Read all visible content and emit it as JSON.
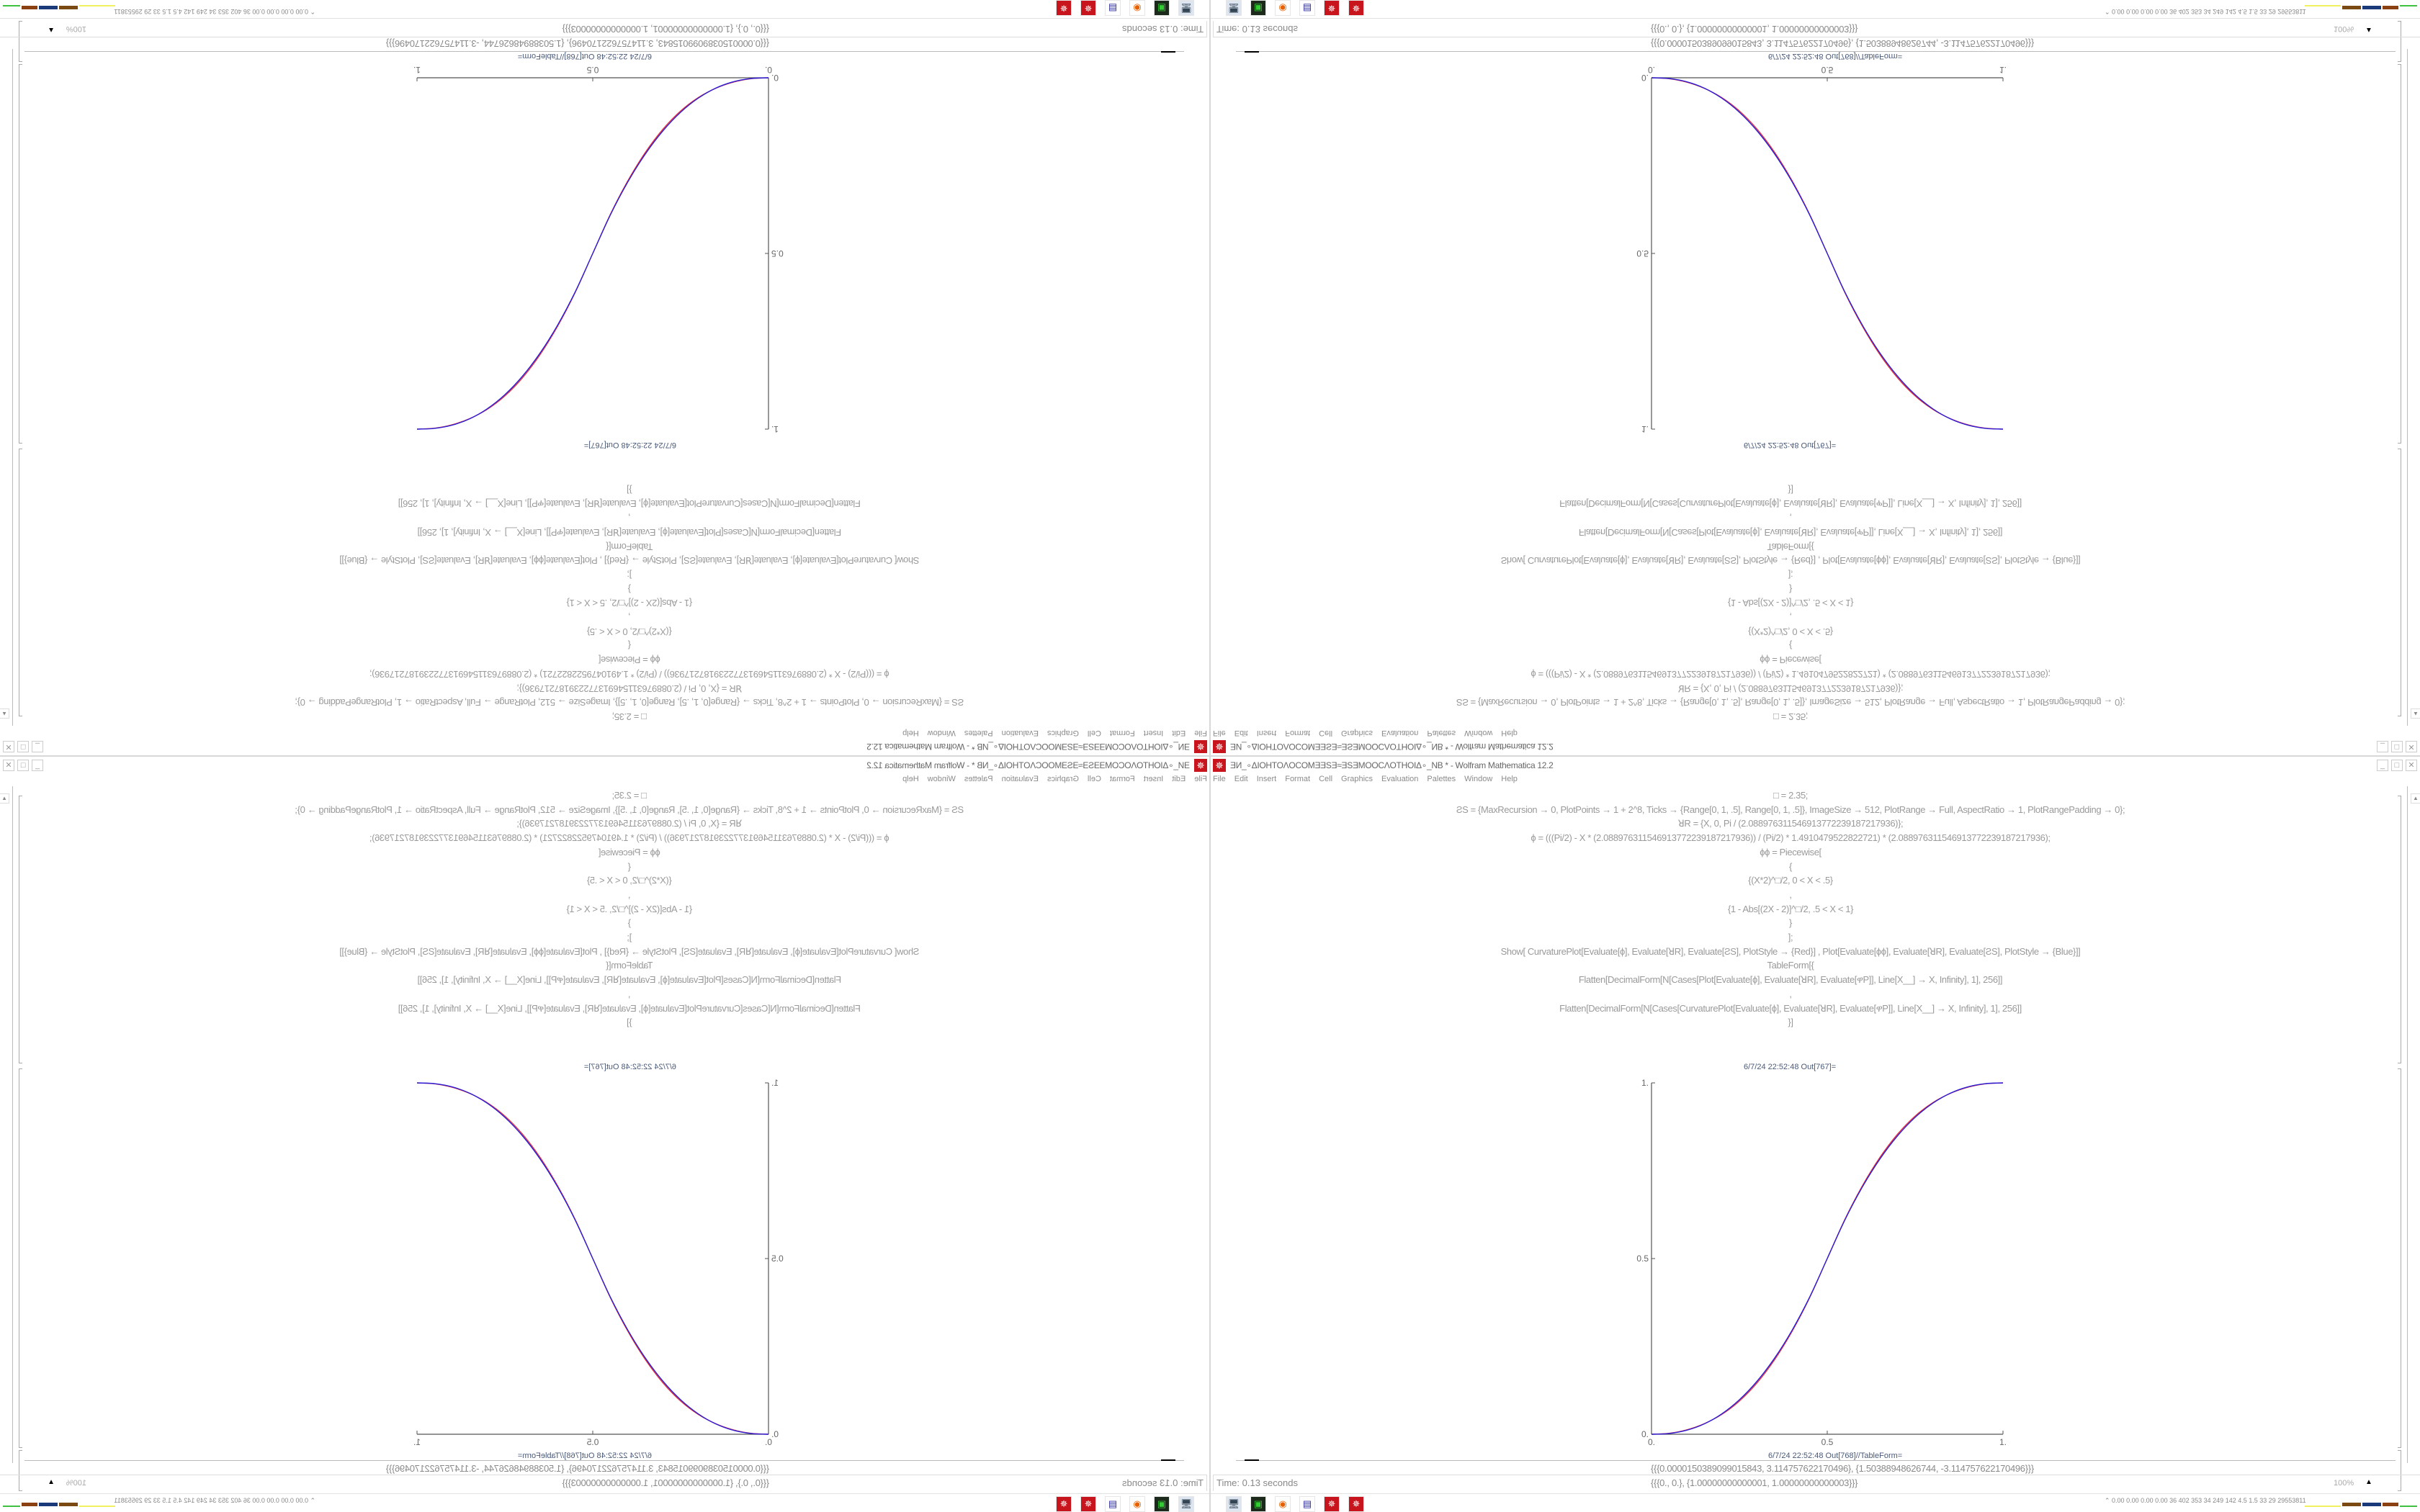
{
  "window": {
    "title": "ƎИ_∘ΔIOHTOΛOCOMƎƎSƎ≈ƎSƎMOOCΛOTHOIΔ∘_NB * - Wolfram Mathematica 12.2",
    "controls": [
      "minimize",
      "maximize",
      "close"
    ]
  },
  "menu": [
    "File",
    "Edit",
    "Insert",
    "Format",
    "Cell",
    "Graphics",
    "Evaluation",
    "Palettes",
    "Window",
    "Help"
  ],
  "input_cell": [
    "□ = 2.35;",
    "ƧS = {MaxRecursion → 0, PlotPoints → 1 + 2^8, Ticks → {Range[0, 1, .5], Range[0, 1, .5]}, ImageSize → 512, PlotRange → Full, AspectRatio → 1, PlotRangePadding → 0};",
    "ꓤR = {X, 0, Pi / (2.0889763115469137722391872179​36)};",
    "ϕ = (((Pi/2) - X * (2.08897631154691377223918721​7936)) / (Pi/2) * 1.4910479522822721) * (2.088976311546913772239187217936);",
    "ϕϕ = Piecewise[",
    "{",
    "{(X*2)^□/2, 0 < X < .5}",
    ",",
    "{1 - Abs[(2X - 2)]^□/2, .5 < X < 1}",
    "}",
    "];",
    "Show[   CurvaturePlot[Evaluate[ϕ], Evaluate[ꓤR], Evaluate[ƧS], PlotStyle → {Red}]   ,   Plot[Evaluate[ϕϕ], Evaluate[ꓤR], Evaluate[ƧS],  PlotStyle → {Blue}]]",
    "TableForm[{",
    "Flatten[DecimalForm[N[Cases[Plot[Evaluate[ϕ], Evaluate[ꓤR], Evaluate[ዋP]], Line[X__] → X, Infinity], 1], 256]]",
    ",",
    "Flatten[DecimalForm[N[Cases[CurvaturePlot[Evaluate[ϕ], Evaluate[ꓤR], Evaluate[ዋP]], Line[X__] → X, Infinity], 1], 256]]",
    "}]"
  ],
  "output_767_label": "6/7/24 22:52:48 Out[767]=",
  "output_768_label": "6/7/24 22:52:48 Out[768]//TableForm=",
  "table_rows": [
    "{{{0.0000150389099015843, 3.114757622170496}, {1.50388948626744, -3.114757622170496}}}",
    "{{{0., 0.}, {1.00000000000001, 1.00000000000003}}}"
  ],
  "status": {
    "time": "Time: 0.13 seconds",
    "zoom": "100%"
  },
  "taskbar": {
    "icons": [
      "network-monitor-icon",
      "terminal-icon",
      "firefox-icon",
      "floppy-64-icon",
      "mathematica-icon",
      "mathematica-icon"
    ],
    "stats": "0.00 0.00 0.00 0.00  36  402  353  34  249  142  4.5  1.5  33  29  29553811"
  },
  "colors": {
    "red_curve": "#e8323c",
    "blue_curve": "#2b1fd6",
    "app_icon": "#c8141c"
  },
  "chart_data": {
    "type": "line",
    "x": [
      0,
      0.05,
      0.1,
      0.15,
      0.2,
      0.25,
      0.3,
      0.35,
      0.4,
      0.45,
      0.5,
      0.55,
      0.6,
      0.65,
      0.7,
      0.75,
      0.8,
      0.85,
      0.9,
      0.95,
      1
    ],
    "series": [
      {
        "color": "#2b1fd6",
        "values": [
          0,
          0.0022,
          0.0114,
          0.0295,
          0.0581,
          0.0981,
          0.1506,
          0.2163,
          0.296,
          0.3904,
          0.5,
          0.6096,
          0.704,
          0.7837,
          0.8494,
          0.9019,
          0.9419,
          0.9705,
          0.9886,
          0.9978,
          1
        ]
      },
      {
        "color": "#e8323c",
        "values": [
          0,
          0.0026,
          0.0125,
          0.03,
          0.0565,
          0.0945,
          0.146,
          0.212,
          0.293,
          0.389,
          0.5,
          0.611,
          0.707,
          0.788,
          0.854,
          0.9055,
          0.9435,
          0.97,
          0.9875,
          0.9974,
          1
        ]
      }
    ],
    "xlim": [
      0,
      1
    ],
    "ylim": [
      0,
      1
    ],
    "xticks": [
      "0.",
      "0.5",
      "1."
    ],
    "yticks": [
      "0.",
      "0.5",
      "1."
    ],
    "grid": false
  }
}
